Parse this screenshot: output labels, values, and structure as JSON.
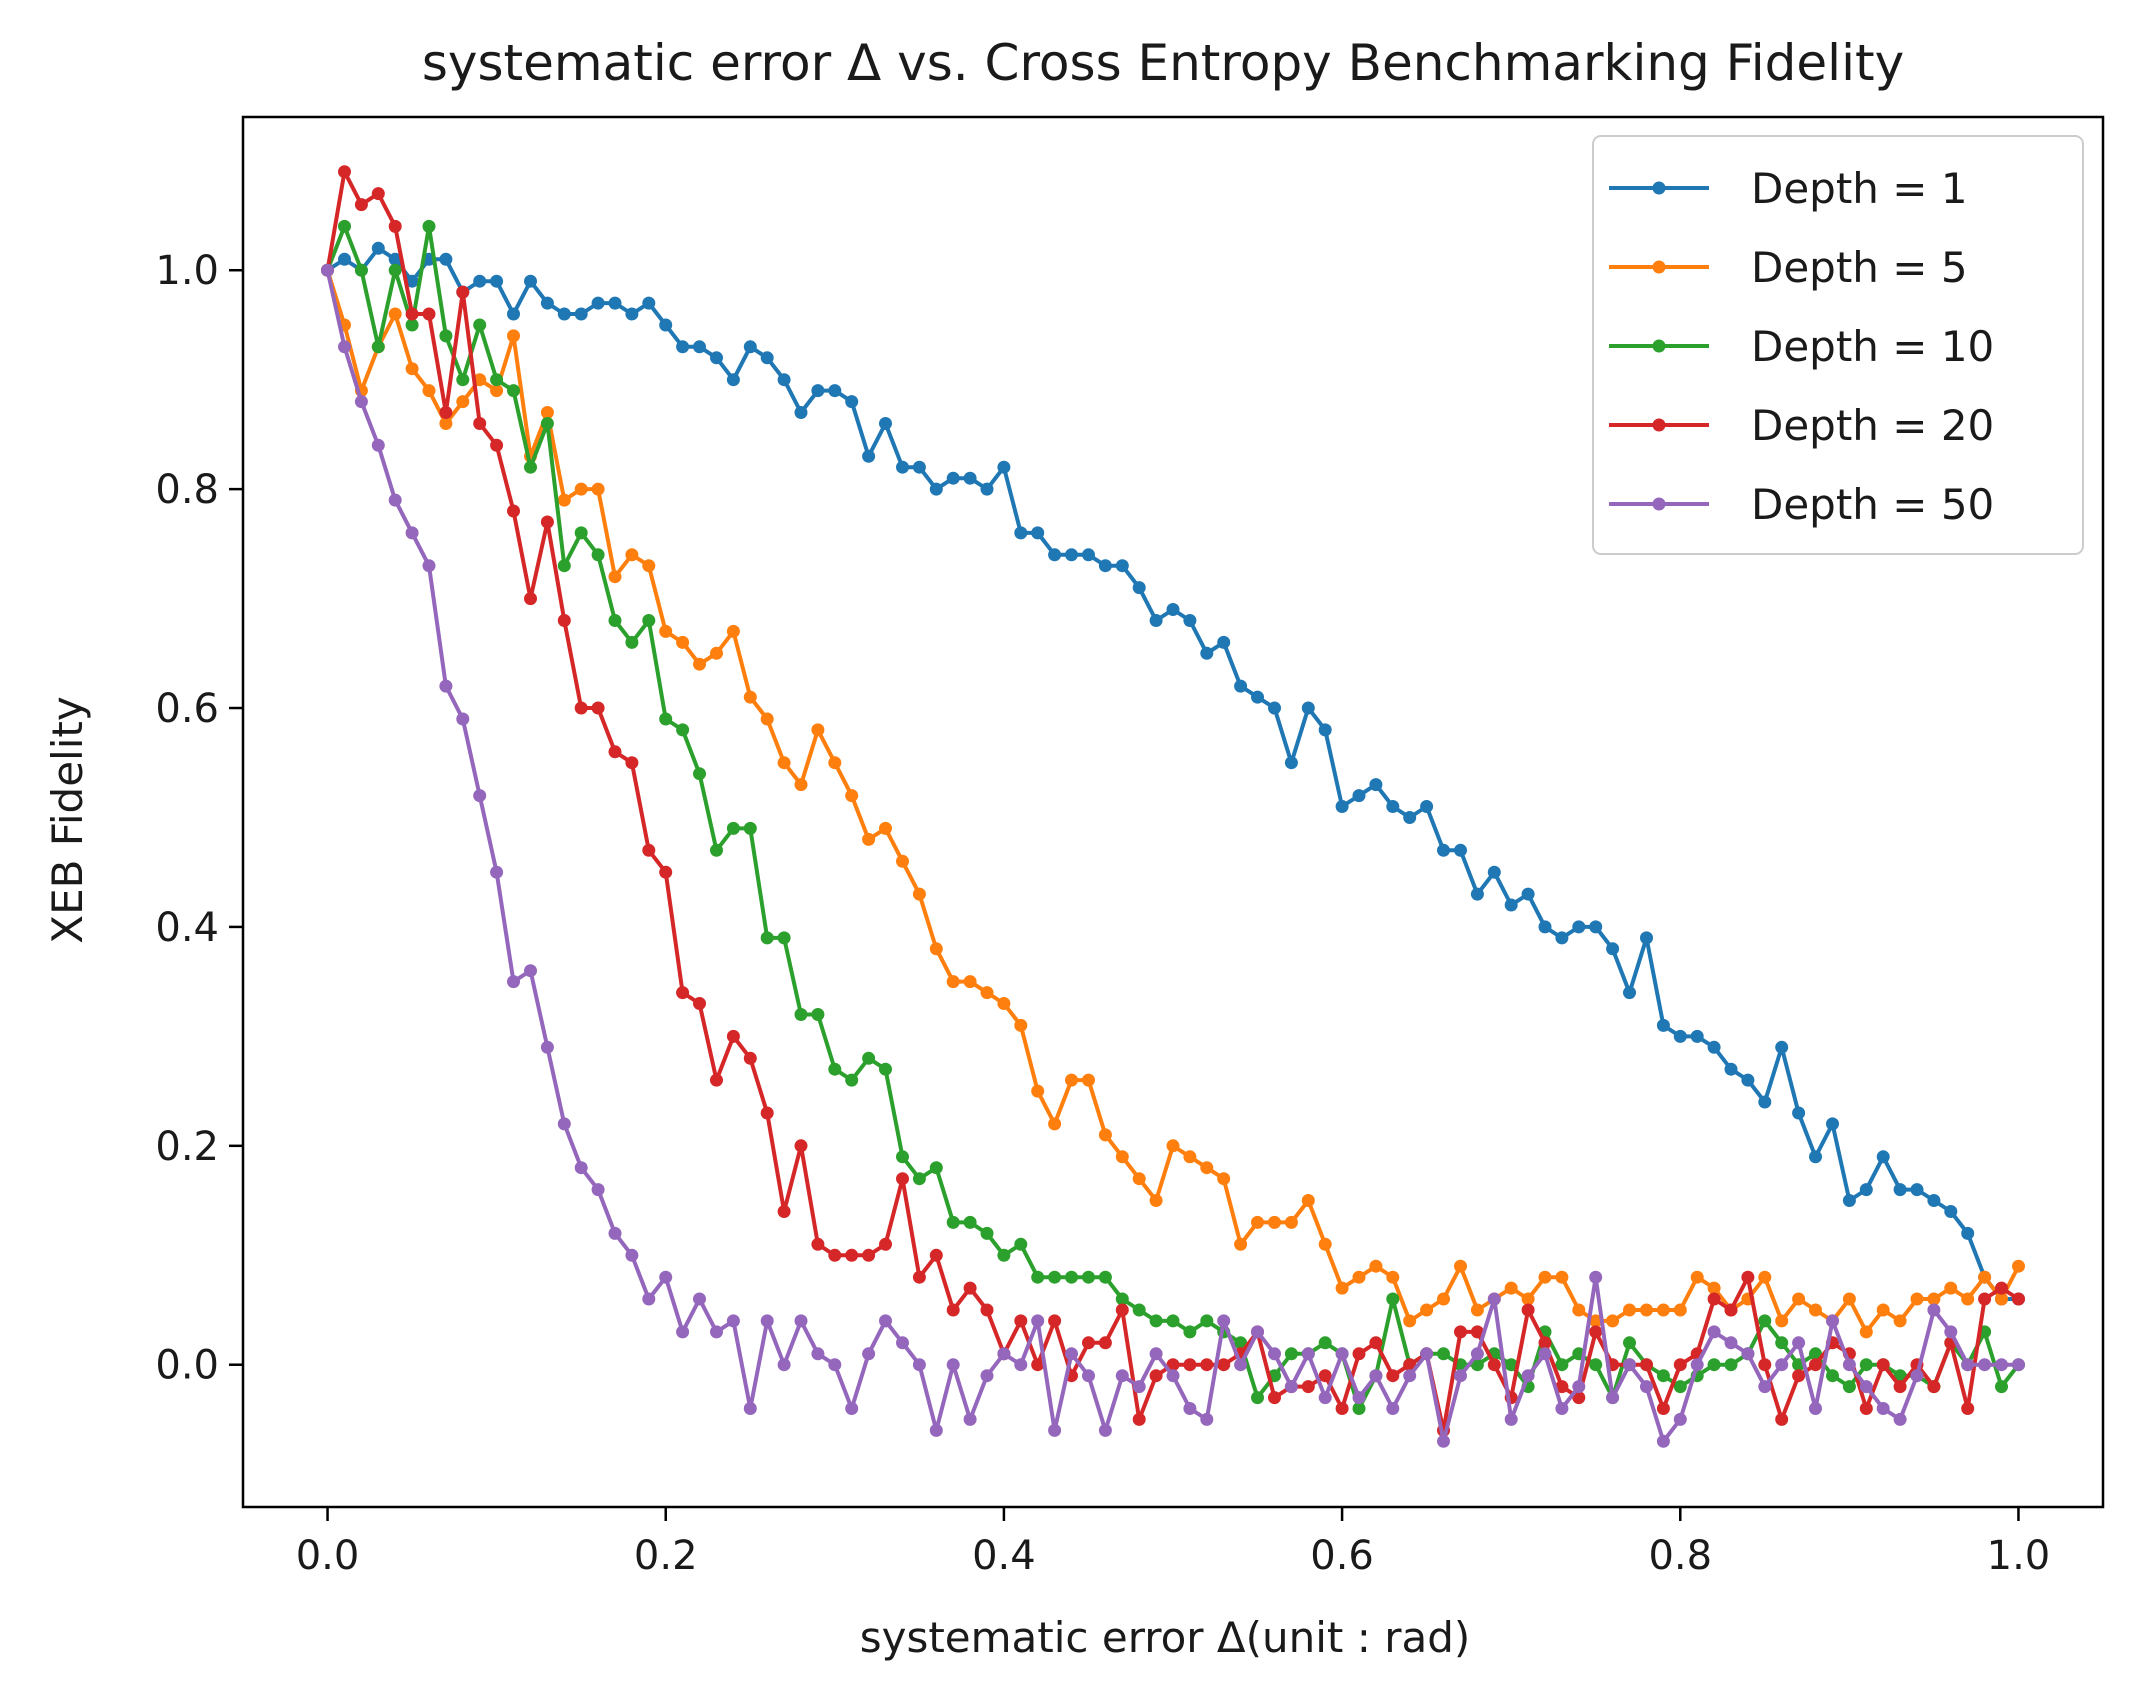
{
  "chart_data": {
    "type": "line",
    "title": "systematic error Δ vs. Cross Entropy Benchmarking Fidelity",
    "xlabel": "systematic error Δ(unit : rad)",
    "ylabel": "XEB Fidelity",
    "xlim": [
      -0.05,
      1.05
    ],
    "ylim": [
      -0.13,
      1.14
    ],
    "xticks": [
      0.0,
      0.2,
      0.4,
      0.6,
      0.8,
      1.0
    ],
    "xtick_labels": [
      "0.0",
      "0.2",
      "0.4",
      "0.6",
      "0.8",
      "1.0"
    ],
    "yticks": [
      0.0,
      0.2,
      0.4,
      0.6,
      0.8,
      1.0
    ],
    "ytick_labels": [
      "0.0",
      "0.2",
      "0.4",
      "0.6",
      "0.8",
      "1.0"
    ],
    "grid": false,
    "legend_position": "top-right",
    "x_start": 0.0,
    "x_step": 0.01,
    "series": [
      {
        "name": "Depth = 1",
        "color": "#1f77b4",
        "values": [
          1.0,
          1.01,
          1.0,
          1.02,
          1.01,
          0.99,
          1.01,
          1.01,
          0.98,
          0.99,
          0.99,
          0.96,
          0.99,
          0.97,
          0.96,
          0.96,
          0.97,
          0.97,
          0.96,
          0.97,
          0.95,
          0.93,
          0.93,
          0.92,
          0.9,
          0.93,
          0.92,
          0.9,
          0.87,
          0.89,
          0.89,
          0.88,
          0.83,
          0.86,
          0.82,
          0.82,
          0.8,
          0.81,
          0.81,
          0.8,
          0.82,
          0.76,
          0.76,
          0.74,
          0.74,
          0.74,
          0.73,
          0.73,
          0.71,
          0.68,
          0.69,
          0.68,
          0.65,
          0.66,
          0.62,
          0.61,
          0.6,
          0.55,
          0.6,
          0.58,
          0.51,
          0.52,
          0.53,
          0.51,
          0.5,
          0.51,
          0.47,
          0.47,
          0.43,
          0.45,
          0.42,
          0.43,
          0.4,
          0.39,
          0.4,
          0.4,
          0.38,
          0.34,
          0.39,
          0.31,
          0.3,
          0.3,
          0.29,
          0.27,
          0.26,
          0.24,
          0.29,
          0.23,
          0.19,
          0.22,
          0.15,
          0.16,
          0.19,
          0.16,
          0.16,
          0.15,
          0.14,
          0.12,
          0.08,
          0.06,
          0.06
        ]
      },
      {
        "name": "Depth = 5",
        "color": "#ff7f0e",
        "values": [
          1.0,
          0.95,
          0.89,
          0.93,
          0.96,
          0.91,
          0.89,
          0.86,
          0.88,
          0.9,
          0.89,
          0.94,
          0.83,
          0.87,
          0.79,
          0.8,
          0.8,
          0.72,
          0.74,
          0.73,
          0.67,
          0.66,
          0.64,
          0.65,
          0.67,
          0.61,
          0.59,
          0.55,
          0.53,
          0.58,
          0.55,
          0.52,
          0.48,
          0.49,
          0.46,
          0.43,
          0.38,
          0.35,
          0.35,
          0.34,
          0.33,
          0.31,
          0.25,
          0.22,
          0.26,
          0.26,
          0.21,
          0.19,
          0.17,
          0.15,
          0.2,
          0.19,
          0.18,
          0.17,
          0.11,
          0.13,
          0.13,
          0.13,
          0.15,
          0.11,
          0.07,
          0.08,
          0.09,
          0.08,
          0.04,
          0.05,
          0.06,
          0.09,
          0.05,
          0.06,
          0.07,
          0.06,
          0.08,
          0.08,
          0.05,
          0.04,
          0.04,
          0.05,
          0.05,
          0.05,
          0.05,
          0.08,
          0.07,
          0.05,
          0.06,
          0.08,
          0.04,
          0.06,
          0.05,
          0.04,
          0.06,
          0.03,
          0.05,
          0.04,
          0.06,
          0.06,
          0.07,
          0.06,
          0.08,
          0.06,
          0.09
        ]
      },
      {
        "name": "Depth = 10",
        "color": "#2ca02c",
        "values": [
          1.0,
          1.04,
          1.0,
          0.93,
          1.0,
          0.95,
          1.04,
          0.94,
          0.9,
          0.95,
          0.9,
          0.89,
          0.82,
          0.86,
          0.73,
          0.76,
          0.74,
          0.68,
          0.66,
          0.68,
          0.59,
          0.58,
          0.54,
          0.47,
          0.49,
          0.49,
          0.39,
          0.39,
          0.32,
          0.32,
          0.27,
          0.26,
          0.28,
          0.27,
          0.19,
          0.17,
          0.18,
          0.13,
          0.13,
          0.12,
          0.1,
          0.11,
          0.08,
          0.08,
          0.08,
          0.08,
          0.08,
          0.06,
          0.05,
          0.04,
          0.04,
          0.03,
          0.04,
          0.03,
          0.02,
          -0.03,
          -0.01,
          0.01,
          0.01,
          0.02,
          0.01,
          -0.04,
          -0.01,
          0.06,
          0.0,
          0.01,
          0.01,
          0.0,
          0.0,
          0.01,
          0.0,
          -0.02,
          0.03,
          0.0,
          0.01,
          0.0,
          -0.03,
          0.02,
          0.0,
          -0.01,
          -0.02,
          -0.01,
          0.0,
          0.0,
          0.01,
          0.04,
          0.02,
          0.0,
          0.01,
          -0.01,
          -0.02,
          0.0,
          0.0,
          -0.01,
          -0.01,
          -0.02,
          0.02,
          0.0,
          0.03,
          -0.02,
          0.0
        ]
      },
      {
        "name": "Depth = 20",
        "color": "#d62728",
        "values": [
          1.0,
          1.09,
          1.06,
          1.07,
          1.04,
          0.96,
          0.96,
          0.87,
          0.98,
          0.86,
          0.84,
          0.78,
          0.7,
          0.77,
          0.68,
          0.6,
          0.6,
          0.56,
          0.55,
          0.47,
          0.45,
          0.34,
          0.33,
          0.26,
          0.3,
          0.28,
          0.23,
          0.14,
          0.2,
          0.11,
          0.1,
          0.1,
          0.1,
          0.11,
          0.17,
          0.08,
          0.1,
          0.05,
          0.07,
          0.05,
          0.01,
          0.04,
          0.0,
          0.04,
          -0.01,
          0.02,
          0.02,
          0.05,
          -0.05,
          -0.01,
          0.0,
          0.0,
          0.0,
          0.0,
          0.01,
          0.03,
          -0.03,
          -0.02,
          -0.02,
          -0.01,
          -0.04,
          0.01,
          0.02,
          -0.01,
          0.0,
          0.01,
          -0.06,
          0.03,
          0.03,
          0.0,
          -0.03,
          0.05,
          0.02,
          -0.02,
          -0.03,
          0.03,
          0.0,
          0.0,
          0.0,
          -0.04,
          0.0,
          0.01,
          0.06,
          0.05,
          0.08,
          0.0,
          -0.05,
          -0.01,
          0.0,
          0.02,
          0.01,
          -0.04,
          0.0,
          -0.02,
          0.0,
          -0.02,
          0.02,
          -0.04,
          0.06,
          0.07,
          0.06
        ]
      },
      {
        "name": "Depth = 50",
        "color": "#9467bd",
        "values": [
          1.0,
          0.93,
          0.88,
          0.84,
          0.79,
          0.76,
          0.73,
          0.62,
          0.59,
          0.52,
          0.45,
          0.35,
          0.36,
          0.29,
          0.22,
          0.18,
          0.16,
          0.12,
          0.1,
          0.06,
          0.08,
          0.03,
          0.06,
          0.03,
          0.04,
          -0.04,
          0.04,
          0.0,
          0.04,
          0.01,
          0.0,
          -0.04,
          0.01,
          0.04,
          0.02,
          0.0,
          -0.06,
          0.0,
          -0.05,
          -0.01,
          0.01,
          0.0,
          0.04,
          -0.06,
          0.01,
          -0.01,
          -0.06,
          -0.01,
          -0.02,
          0.01,
          -0.01,
          -0.04,
          -0.05,
          0.04,
          0.0,
          0.03,
          0.01,
          -0.02,
          0.01,
          -0.03,
          0.01,
          -0.03,
          -0.01,
          -0.04,
          -0.01,
          0.01,
          -0.07,
          -0.01,
          0.01,
          0.06,
          -0.05,
          -0.01,
          0.01,
          -0.04,
          -0.02,
          0.08,
          -0.03,
          0.0,
          -0.02,
          -0.07,
          -0.05,
          0.0,
          0.03,
          0.02,
          0.01,
          -0.02,
          0.0,
          0.02,
          -0.04,
          0.04,
          0.0,
          -0.02,
          -0.04,
          -0.05,
          -0.01,
          0.05,
          0.03,
          0.0,
          0.0,
          0.0,
          0.0
        ]
      }
    ]
  }
}
